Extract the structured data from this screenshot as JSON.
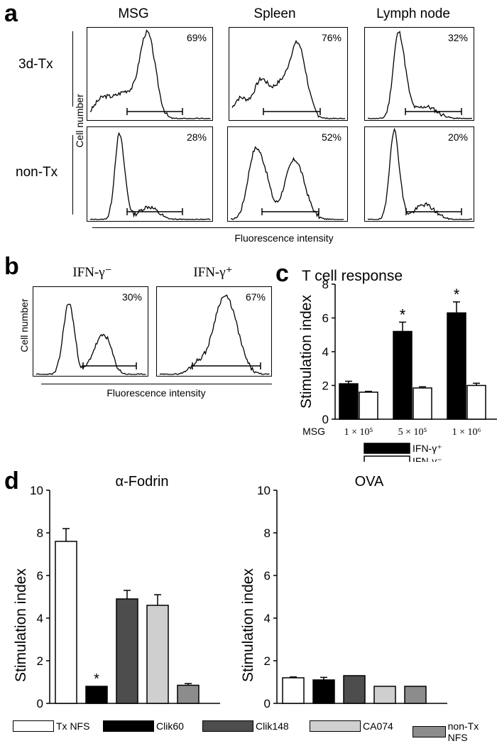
{
  "panels": {
    "a": {
      "letter": "a",
      "columns": [
        "MSG",
        "Spleen",
        "Lymph node"
      ],
      "rows": [
        "3d-Tx",
        "non-Tx"
      ],
      "ylabel": "Cell number",
      "xlabel": "Fluorescence intensity"
    },
    "b": {
      "letter": "b",
      "titles": [
        "IFN-γ⁻",
        "IFN-γ⁺"
      ],
      "ylabel": "Cell number",
      "xlabel": "Fluorescence intensity"
    },
    "c": {
      "letter": "c"
    },
    "d": {
      "letter": "d"
    }
  },
  "chart_data": [
    {
      "id": "a-histograms",
      "type": "area",
      "panels": [
        {
          "row": "3d-Tx",
          "column": "MSG",
          "percent": "69%"
        },
        {
          "row": "3d-Tx",
          "column": "Spleen",
          "percent": "76%"
        },
        {
          "row": "3d-Tx",
          "column": "Lymph node",
          "percent": "32%"
        },
        {
          "row": "non-Tx",
          "column": "MSG",
          "percent": "28%"
        },
        {
          "row": "non-Tx",
          "column": "Spleen",
          "percent": "52%"
        },
        {
          "row": "non-Tx",
          "column": "Lymph node",
          "percent": "20%"
        }
      ]
    },
    {
      "id": "b-histograms",
      "type": "area",
      "panels": [
        {
          "title": "IFN-γ⁻",
          "percent": "30%"
        },
        {
          "title": "IFN-γ⁺",
          "percent": "67%"
        }
      ]
    },
    {
      "id": "c-bar",
      "type": "bar",
      "title": "T cell response",
      "ylabel": "Stimulation index",
      "xprefix": "MSG",
      "categories": [
        "1 × 10⁵",
        "5 × 10⁵",
        "1 × 10⁶"
      ],
      "ylim": [
        0,
        8
      ],
      "yticks": [
        "0",
        "2",
        "4",
        "6",
        "8"
      ],
      "series": [
        {
          "name": "IFN-γ⁺",
          "fill": "#000000",
          "values": [
            2.1,
            5.2,
            6.3
          ],
          "errors": [
            0.15,
            0.55,
            0.65
          ],
          "significant": [
            false,
            true,
            true
          ]
        },
        {
          "name": "IFN-γ⁻",
          "fill": "#ffffff",
          "values": [
            1.6,
            1.85,
            2.0
          ],
          "errors": [
            0.05,
            0.07,
            0.13
          ],
          "significant": [
            false,
            false,
            false
          ]
        }
      ],
      "annotation": "*"
    },
    {
      "id": "d-fodrin",
      "type": "bar",
      "title": "α-Fodrin",
      "ylabel": "Stimulation index",
      "ylim": [
        0,
        10
      ],
      "yticks": [
        "0",
        "2",
        "4",
        "6",
        "8",
        "10"
      ],
      "categories": [
        "Tx NFS",
        "Clik60",
        "Clik148",
        "CA074",
        "non-Tx NFS"
      ],
      "values": [
        7.6,
        0.8,
        4.9,
        4.6,
        0.85
      ],
      "errors": [
        0.6,
        0,
        0.4,
        0.5,
        0.08
      ],
      "significant": [
        false,
        true,
        false,
        false,
        false
      ],
      "annotation": "*"
    },
    {
      "id": "d-ova",
      "type": "bar",
      "title": "OVA",
      "ylabel": "Stimulation index",
      "ylim": [
        0,
        10
      ],
      "yticks": [
        "0",
        "2",
        "4",
        "6",
        "8",
        "10"
      ],
      "categories": [
        "Tx NFS",
        "Clik60",
        "Clik148",
        "CA074",
        "non-Tx NFS"
      ],
      "values": [
        1.2,
        1.1,
        1.3,
        0.8,
        0.8
      ],
      "errors": [
        0.04,
        0.12,
        0,
        0,
        0
      ]
    }
  ],
  "legend_d": {
    "items": [
      {
        "label": "Tx NFS",
        "fill": "#ffffff"
      },
      {
        "label": "Clik60",
        "fill": "#000000"
      },
      {
        "label": "Clik148",
        "fill": "#4d4d4d"
      },
      {
        "label": "CA074",
        "fill": "#cfcfcf"
      },
      {
        "label": "non-Tx NFS",
        "fill": "#8c8c8c"
      }
    ]
  }
}
